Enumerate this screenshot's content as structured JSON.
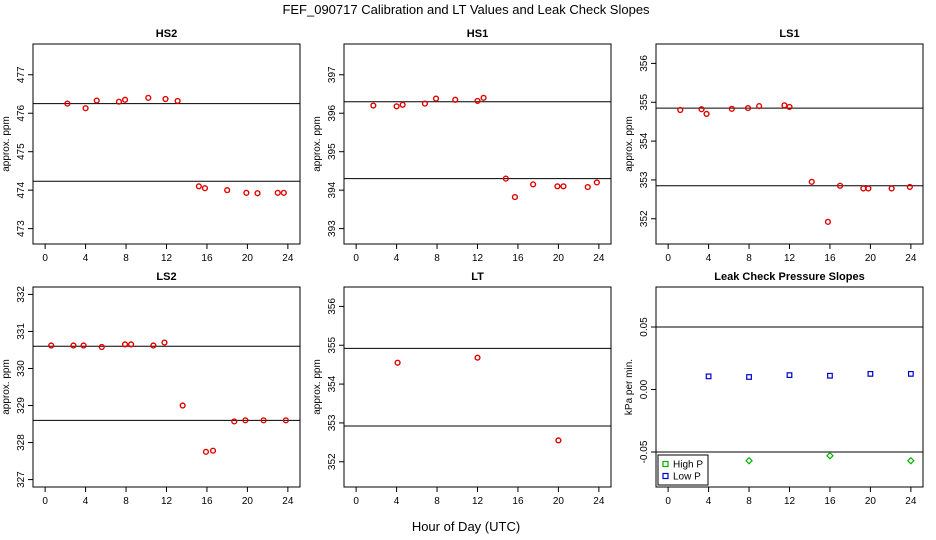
{
  "figure": {
    "title": "FEF_090717  Calibration and LT Values and Leak Check Slopes",
    "xlabel": "Hour of Day (UTC)"
  },
  "colors": {
    "calibration": "#e00000",
    "high_p": "#00b000",
    "low_p": "#0000cc",
    "axis": "#000000"
  },
  "chart_data": [
    {
      "type": "scatter",
      "title": "HS2",
      "ylabel": "approx. ppm",
      "xlim": [
        -1.2,
        25.2
      ],
      "ylim": [
        472.6,
        477.8
      ],
      "xticks": [
        0,
        4,
        8,
        12,
        16,
        20,
        24
      ],
      "yticks": [
        473,
        474,
        475,
        476,
        477
      ],
      "hlines": [
        476.25,
        474.23
      ],
      "series": [
        {
          "name": "calibration",
          "color": "#e00000",
          "x": [
            2.2,
            4.0,
            5.1,
            7.3,
            7.9,
            10.2,
            11.9,
            13.1,
            15.2,
            15.8,
            18.0,
            19.9,
            21.0,
            23.0,
            23.6
          ],
          "y": [
            476.25,
            476.13,
            476.33,
            476.3,
            476.35,
            476.4,
            476.37,
            476.32,
            474.1,
            474.05,
            474.0,
            473.93,
            473.92,
            473.93,
            473.93
          ]
        }
      ]
    },
    {
      "type": "scatter",
      "title": "HS1",
      "ylabel": "approx. ppm",
      "xlim": [
        -1.2,
        25.2
      ],
      "ylim": [
        392.6,
        397.8
      ],
      "xticks": [
        0,
        4,
        8,
        12,
        16,
        20,
        24
      ],
      "yticks": [
        393,
        394,
        395,
        396,
        397
      ],
      "hlines": [
        396.3,
        394.3
      ],
      "series": [
        {
          "name": "calibration",
          "color": "#e00000",
          "x": [
            1.7,
            4.0,
            4.6,
            6.8,
            7.9,
            9.8,
            12.0,
            12.6,
            14.8,
            15.7,
            17.5,
            19.9,
            20.5,
            22.9,
            23.8
          ],
          "y": [
            396.2,
            396.18,
            396.22,
            396.25,
            396.38,
            396.35,
            396.32,
            396.4,
            394.3,
            393.82,
            394.15,
            394.1,
            394.1,
            394.08,
            394.2
          ]
        }
      ]
    },
    {
      "type": "scatter",
      "title": "LS1",
      "ylabel": "approx. ppm",
      "xlim": [
        -1.2,
        25.2
      ],
      "ylim": [
        351.35,
        356.5
      ],
      "xticks": [
        0,
        4,
        8,
        12,
        16,
        20,
        24
      ],
      "yticks": [
        352,
        353,
        354,
        355,
        356
      ],
      "hlines": [
        354.85,
        352.85
      ],
      "series": [
        {
          "name": "calibration",
          "color": "#e00000",
          "x": [
            1.2,
            3.3,
            3.8,
            6.3,
            7.9,
            9.0,
            11.5,
            12.0,
            14.2,
            15.8,
            17.0,
            19.3,
            19.8,
            22.1,
            23.9
          ],
          "y": [
            354.8,
            354.82,
            354.7,
            354.83,
            354.85,
            354.9,
            354.92,
            354.88,
            352.95,
            351.92,
            352.85,
            352.78,
            352.78,
            352.78,
            352.82
          ]
        }
      ]
    },
    {
      "type": "scatter",
      "title": "LS2",
      "ylabel": "approx. ppm",
      "xlim": [
        -1.2,
        25.2
      ],
      "ylim": [
        326.8,
        332.2
      ],
      "xticks": [
        0,
        4,
        8,
        12,
        16,
        20,
        24
      ],
      "yticks": [
        327,
        328,
        329,
        330,
        331,
        332
      ],
      "hlines": [
        330.6,
        328.6
      ],
      "series": [
        {
          "name": "calibration",
          "color": "#e00000",
          "x": [
            0.6,
            2.8,
            3.8,
            5.6,
            7.9,
            8.5,
            10.7,
            11.8,
            13.6,
            15.9,
            16.6,
            18.7,
            19.8,
            21.6,
            23.8
          ],
          "y": [
            330.62,
            330.62,
            330.62,
            330.58,
            330.65,
            330.65,
            330.62,
            330.7,
            329.0,
            327.75,
            327.78,
            328.57,
            328.6,
            328.6,
            328.6
          ]
        }
      ]
    },
    {
      "type": "scatter",
      "title": "LT",
      "ylabel": "approx. ppm",
      "xlim": [
        -1.2,
        25.2
      ],
      "ylim": [
        351.35,
        356.5
      ],
      "xticks": [
        0,
        4,
        8,
        12,
        16,
        20,
        24
      ],
      "yticks": [
        352,
        353,
        354,
        355,
        356
      ],
      "hlines": [
        354.92,
        352.92
      ],
      "series": [
        {
          "name": "calibration",
          "color": "#e00000",
          "x": [
            4.1,
            12.0,
            20.0
          ],
          "y": [
            354.55,
            354.68,
            352.55
          ]
        }
      ]
    },
    {
      "type": "scatter",
      "title": "Leak Check Pressure Slopes",
      "ylabel": "kPa per min.",
      "xlim": [
        -1.2,
        25.2
      ],
      "ylim": [
        -0.078,
        0.082
      ],
      "xticks": [
        0,
        4,
        8,
        12,
        16,
        20,
        24
      ],
      "yticks": [
        -0.05,
        0.0,
        0.05
      ],
      "ytick_labels": [
        "-0.05",
        "0.00",
        "0.05"
      ],
      "hlines": [
        0.05,
        -0.05
      ],
      "legend": {
        "position": "bottom-left",
        "entries": [
          "High P",
          "Low P"
        ]
      },
      "series": [
        {
          "name": "High P",
          "color": "#00b000",
          "marker": "diamond",
          "x": [
            8.0,
            16.0,
            24.0
          ],
          "y": [
            -0.057,
            -0.053,
            -0.057
          ]
        },
        {
          "name": "Low P",
          "color": "#0000cc",
          "marker": "square",
          "x": [
            4.0,
            8.0,
            12.0,
            16.0,
            20.0,
            24.0
          ],
          "y": [
            0.0105,
            0.01,
            0.0115,
            0.011,
            0.0125,
            0.0125
          ]
        }
      ]
    }
  ]
}
